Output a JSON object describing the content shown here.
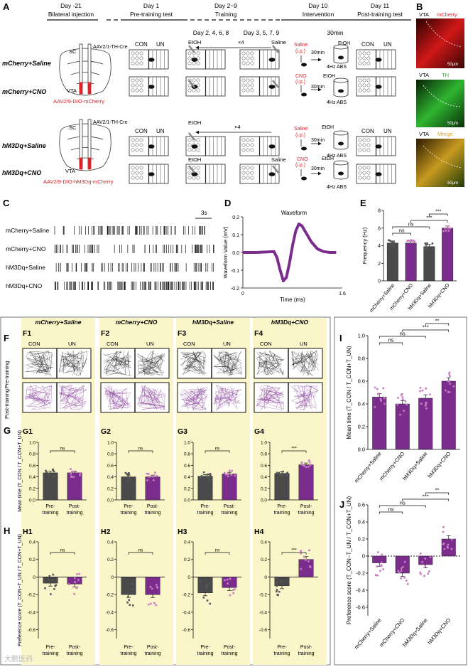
{
  "panelA": {
    "letter": "A",
    "timeline": [
      {
        "day": "Day -21",
        "phase": "Bilateral injection"
      },
      {
        "day": "Day 1",
        "phase": "Pre-training test"
      },
      {
        "day": "Day 2~9",
        "phase": "Training"
      },
      {
        "day": "Day 10",
        "phase": "Intervention"
      },
      {
        "day": "Day 11",
        "phase": "Post-training test"
      }
    ],
    "groups": [
      "mCherry+Saline",
      "mCherry+CNO",
      "hM3Dq+Saline",
      "hM3Dq+CNO"
    ],
    "virus_top": "AAV2/1-TH-Cre",
    "virus_bottom_1": "AAV2/9-DIO-mCherry",
    "virus_bottom_2": "AAV2/9-DIO-hM3Dq-mCherry",
    "sc": "SC",
    "vta": "VTA",
    "con": "CON",
    "un": "UN",
    "training_days_1": "Day 2, 4, 6, 8",
    "training_days_2": "Day 3, 5, 7, 9",
    "repeat": "×4",
    "etoh": "EtOH",
    "saline": "Saline",
    "cno": "CNO",
    "ip": "(i.p.)",
    "min30": "30min",
    "abs": "4Hz ABS",
    "colors": {
      "red": "#d8232a",
      "purple": "#7b2d8e",
      "yellow": "#fbf6c9"
    }
  },
  "panelB": {
    "letter": "B",
    "rows": [
      {
        "region": "VTA",
        "label": "mCherry",
        "scale": "50μm"
      },
      {
        "region": "VTA",
        "label": "TH",
        "scale": "50μm"
      },
      {
        "region": "VTA",
        "label": "Merge",
        "scale": "50μm"
      }
    ]
  },
  "panelC": {
    "letter": "C",
    "scale": "3s",
    "rows": [
      "mCherry+Saline",
      "mCherry+CNO",
      "hM3Dq+Saline",
      "hM3Dq+CNO"
    ]
  },
  "panelD": {
    "letter": "D"
  },
  "panelF": {
    "letter": "F",
    "sub": [
      "F1",
      "F2",
      "F3",
      "F4"
    ],
    "groups": [
      "mCherry+Saline",
      "mCherry+CNO",
      "hM3Dq+Saline",
      "hM3Dq+CNO"
    ],
    "row1": "Pre-training",
    "row2": "Post-training",
    "con": "CON",
    "un": "UN"
  },
  "panelG": {
    "letter": "G",
    "sub": [
      "G1",
      "G2",
      "G3",
      "G4"
    ]
  },
  "panelH": {
    "letter": "H",
    "sub": [
      "H1",
      "H2",
      "H3",
      "H4"
    ]
  },
  "panelI": {
    "letter": "I"
  },
  "panelJ": {
    "letter": "J"
  },
  "watermark": "大鹏医药",
  "chart_data": [
    {
      "id": "D",
      "type": "line",
      "title": "Waveform",
      "xlabel": "Time (ms)",
      "ylabel": "Waveform Value (mV)",
      "xlim": [
        0,
        1.6
      ],
      "ylim": [
        -0.2,
        0.2
      ],
      "xticks": [
        "0",
        "1.6"
      ],
      "yticks": [
        "0.2",
        "0.1",
        "0.0",
        "-0.1",
        "-0.2"
      ],
      "x": [
        0,
        0.2,
        0.4,
        0.5,
        0.55,
        0.6,
        0.65,
        0.7,
        0.75,
        0.8,
        0.85,
        0.9,
        0.95,
        1.0,
        1.1,
        1.2,
        1.3,
        1.4,
        1.5
      ],
      "y": [
        0,
        0,
        0.003,
        0.005,
        -0.03,
        -0.1,
        -0.16,
        -0.14,
        -0.06,
        0.04,
        0.12,
        0.16,
        0.15,
        0.12,
        0.06,
        0.02,
        0.005,
        0,
        0
      ]
    },
    {
      "id": "E",
      "type": "bar",
      "ylabel": "Frequency (Hz)",
      "ylim": [
        0,
        8
      ],
      "yticks": [
        "0",
        "2",
        "4",
        "6",
        "8"
      ],
      "categories": [
        "mCherry+Saline",
        "mCherry+CNO",
        "hM3Dq+Saline",
        "hM3Dq+CNO"
      ],
      "values": [
        4.3,
        4.3,
        3.9,
        6.0
      ],
      "colors": [
        "#4a4a4a",
        "#7b2d8e",
        "#4a4a4a",
        "#7b2d8e"
      ],
      "sig": [
        {
          "from": 0,
          "to": 1,
          "label": "ns"
        },
        {
          "from": 0,
          "to": 2,
          "label": "ns"
        },
        {
          "from": 1,
          "to": 3,
          "label": "***"
        },
        {
          "from": 2,
          "to": 3,
          "label": "***"
        }
      ]
    },
    {
      "id": "G",
      "type": "bar",
      "ylabel": "Mean time (T_CON / T_CON+T_UN)",
      "ylim": [
        0,
        1.0
      ],
      "yticks": [
        "0.0",
        "0.2",
        "0.4",
        "0.6",
        "0.8",
        "1.0"
      ],
      "categories": [
        "Pre-training",
        "Post-training"
      ],
      "panels": [
        {
          "name": "G1",
          "values": [
            0.47,
            0.47
          ],
          "sig": "ns"
        },
        {
          "name": "G2",
          "values": [
            0.4,
            0.4
          ],
          "sig": "ns"
        },
        {
          "name": "G3",
          "values": [
            0.41,
            0.45
          ],
          "sig": "ns"
        },
        {
          "name": "G4",
          "values": [
            0.46,
            0.61
          ],
          "sig": "***"
        }
      ]
    },
    {
      "id": "H",
      "type": "bar",
      "ylabel": "Preference score (T_CON−T_UN / T_CON+T_UN)",
      "ylim": [
        -0.7,
        0.4
      ],
      "yticks": [
        "0.4",
        "0.2",
        "0",
        "-0.2",
        "-0.4",
        "-0.6"
      ],
      "categories": [
        "Pre-training",
        "Post-training"
      ],
      "panels": [
        {
          "name": "H1",
          "values": [
            -0.07,
            -0.08
          ],
          "sig": "ns"
        },
        {
          "name": "H2",
          "values": [
            -0.2,
            -0.2
          ],
          "sig": "ns"
        },
        {
          "name": "H3",
          "values": [
            -0.18,
            -0.12
          ],
          "sig": "ns"
        },
        {
          "name": "H4",
          "values": [
            -0.1,
            0.2
          ],
          "sig": "***"
        }
      ]
    },
    {
      "id": "I",
      "type": "bar",
      "ylabel": "Mean time (T_CON / T_CON+T_UN)",
      "ylim": [
        0,
        1.0
      ],
      "yticks": [
        "0.0",
        "0.2",
        "0.4",
        "0.6",
        "0.8",
        "1.0"
      ],
      "categories": [
        "mCherry+Saline",
        "mCherry+CNO",
        "hM3Dq+Saline",
        "hM3Dq+CNO"
      ],
      "values": [
        0.46,
        0.4,
        0.45,
        0.6
      ],
      "sig": [
        {
          "from": 0,
          "to": 1,
          "label": "ns"
        },
        {
          "from": 0,
          "to": 2,
          "label": "ns"
        },
        {
          "from": 1,
          "to": 3,
          "label": "***"
        },
        {
          "from": 2,
          "to": 3,
          "label": "**"
        }
      ]
    },
    {
      "id": "J",
      "type": "bar",
      "ylabel": "Preference score (T_CON−T_UN / T_CON+T_UN)",
      "ylim": [
        -0.7,
        0.6
      ],
      "yticks": [
        "0.6",
        "0.4",
        "0.2",
        "0",
        "-0.2",
        "-0.4",
        "-0.6"
      ],
      "categories": [
        "mCherry+Saline",
        "mCherry+CNO",
        "hM3Dq+Saline",
        "hM3Dq+CNO"
      ],
      "values": [
        -0.08,
        -0.2,
        -0.1,
        0.2
      ],
      "sig": [
        {
          "from": 0,
          "to": 1,
          "label": "ns"
        },
        {
          "from": 0,
          "to": 2,
          "label": "ns"
        },
        {
          "from": 1,
          "to": 3,
          "label": "***"
        },
        {
          "from": 2,
          "to": 3,
          "label": "**"
        }
      ]
    }
  ]
}
